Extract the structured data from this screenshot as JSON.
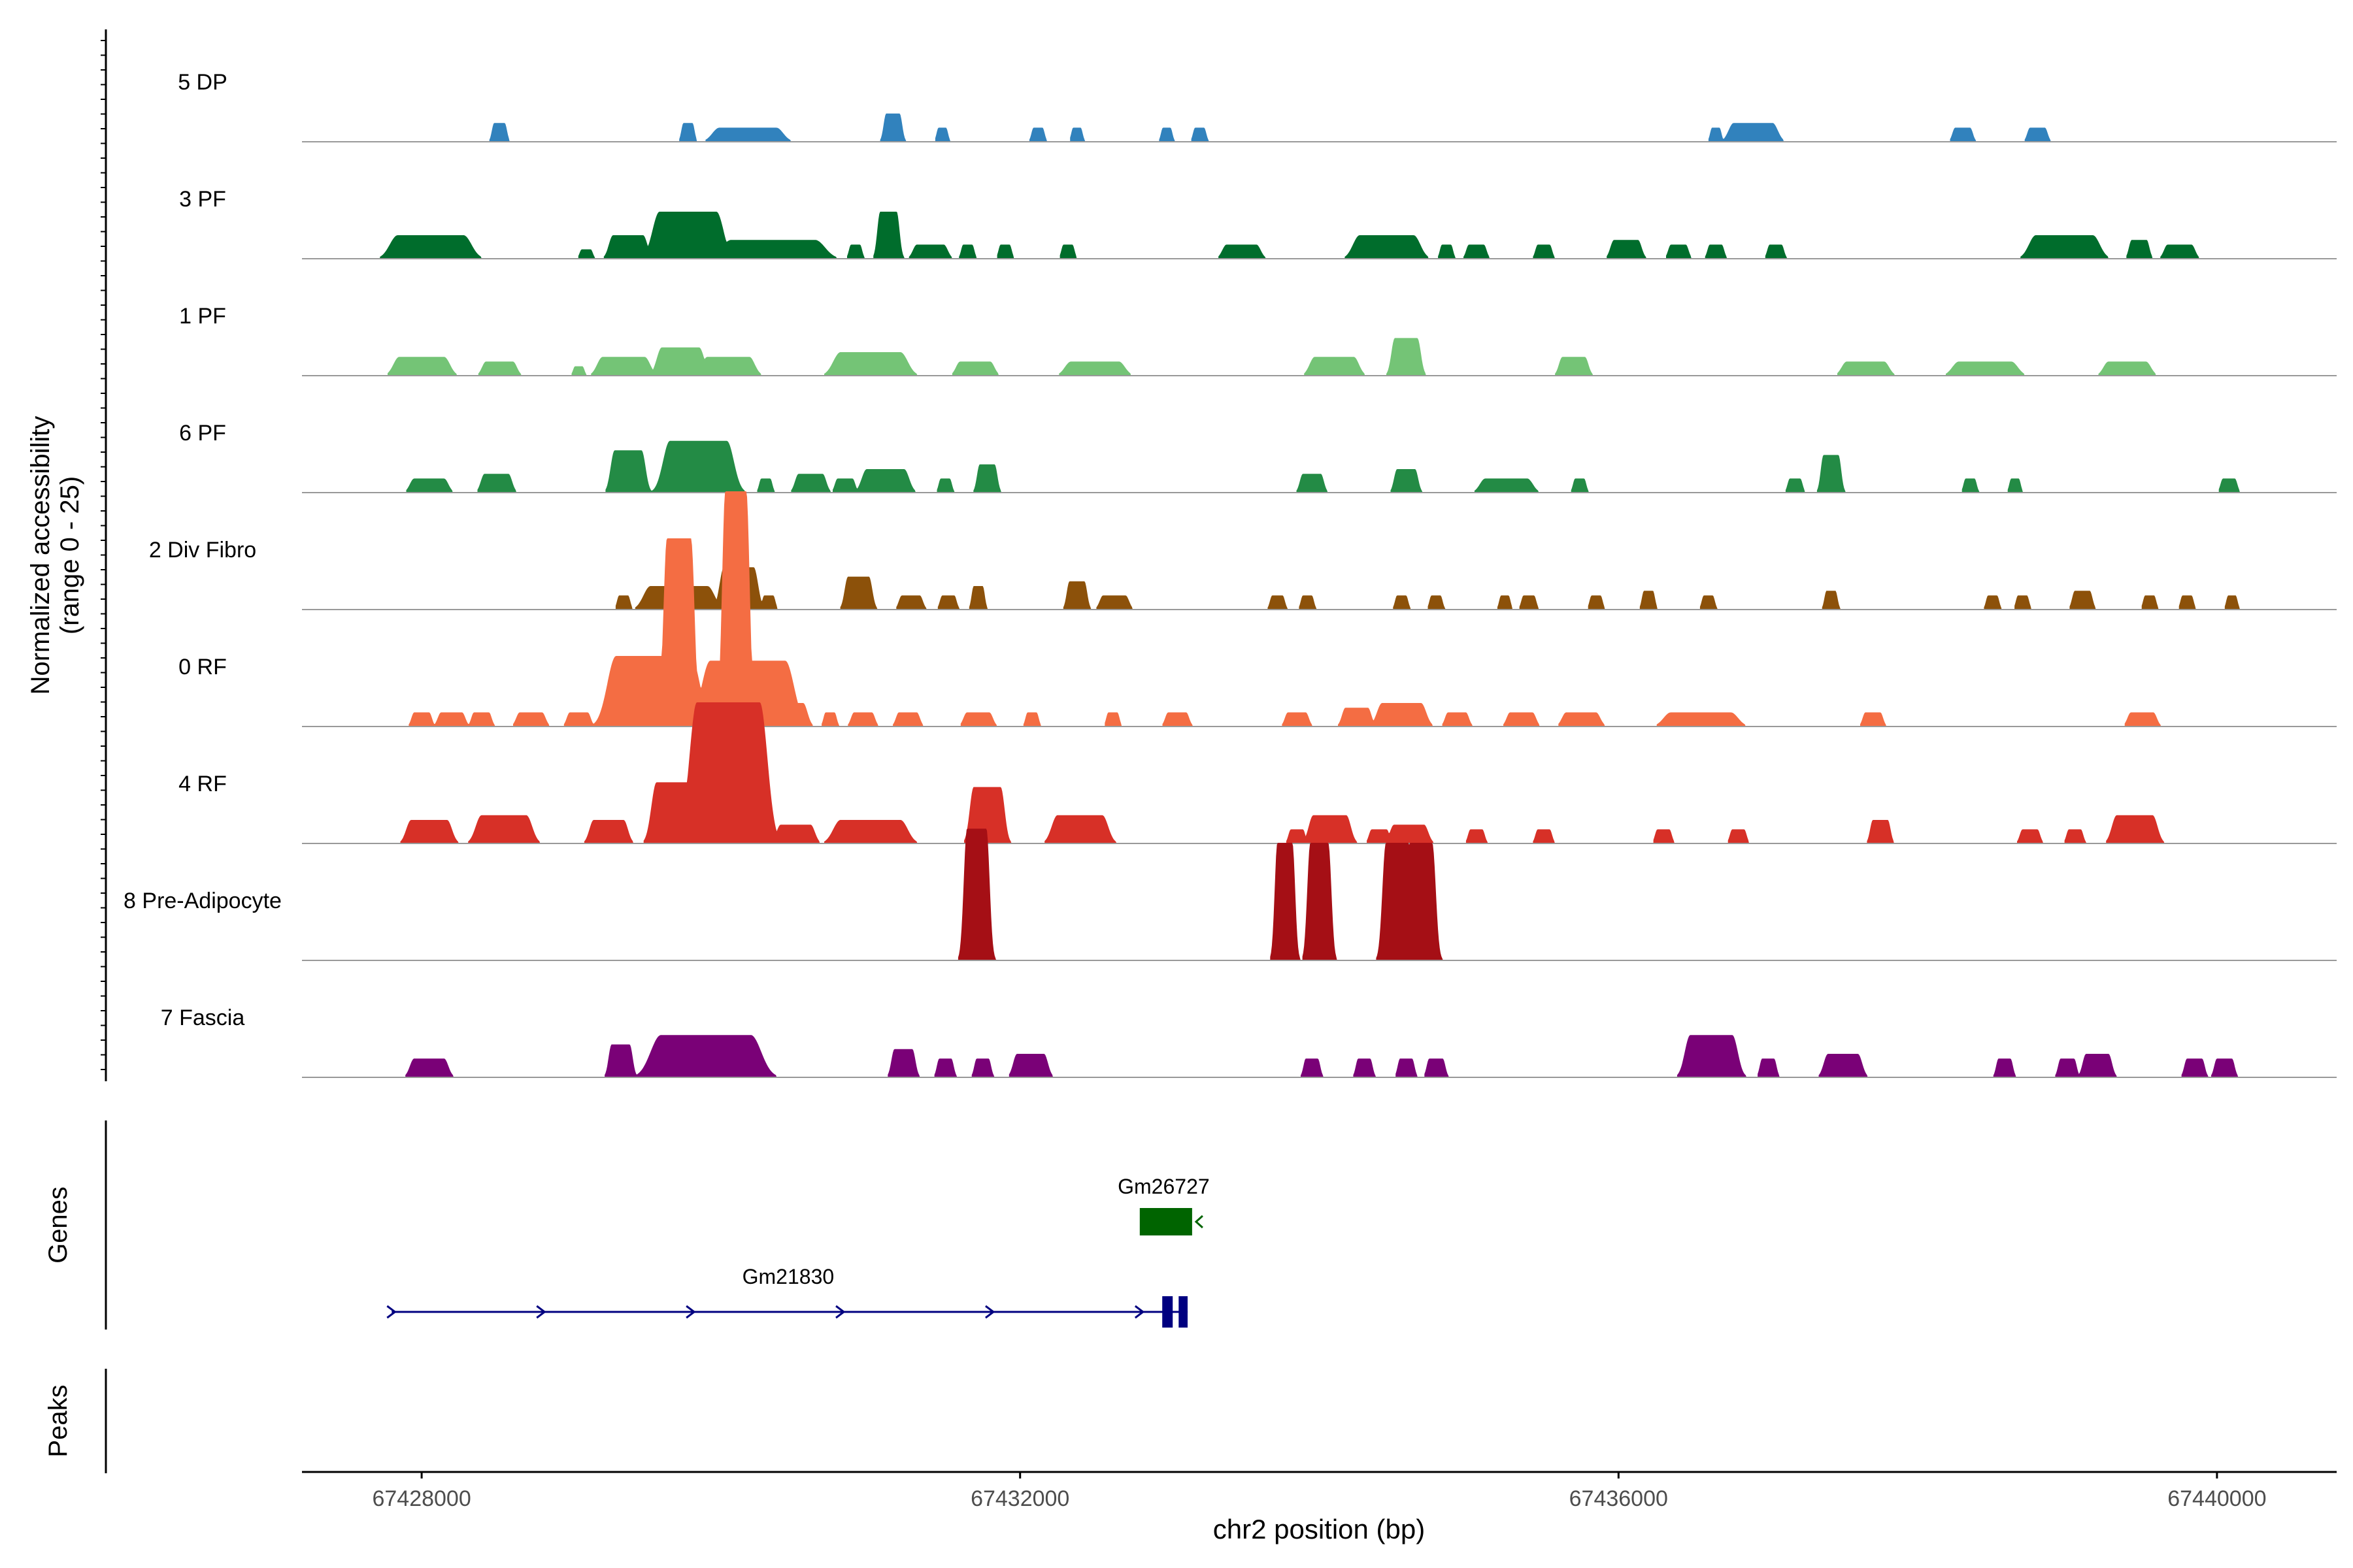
{
  "chart_data": {
    "type": "area",
    "title": "",
    "ylabel_line1": "Normalized accessibility",
    "ylabel_line2": "(range 0 - 25)",
    "xlabel": "chr2 position (bp)",
    "ylim": [
      0,
      25
    ],
    "xlim": [
      67427200,
      67440800
    ],
    "x_ticks": [
      67428000,
      67432000,
      67436000,
      67440000
    ],
    "x_tick_labels": [
      "67428000",
      "67432000",
      "67436000",
      "67440000"
    ],
    "track_panel_labels": [
      "Genes",
      "Peaks"
    ],
    "colors": {
      "axis": "#000000",
      "baseline": "#999999",
      "gene_forward": "#000080",
      "gene_reverse": "#006400",
      "tick_text": "#4d4d4d"
    },
    "series": [
      {
        "name": "5 DP",
        "color": "#3182BD",
        "peaks": [
          [
            67428520,
            70,
            4
          ],
          [
            67429780,
            60,
            4
          ],
          [
            67430180,
            380,
            3
          ],
          [
            67431150,
            90,
            6
          ],
          [
            67431480,
            50,
            3
          ],
          [
            67432120,
            60,
            3
          ],
          [
            67432380,
            50,
            3
          ],
          [
            67432980,
            50,
            3
          ],
          [
            67433200,
            60,
            3
          ],
          [
            67436650,
            50,
            3
          ],
          [
            67436900,
            260,
            4
          ],
          [
            67438300,
            100,
            3
          ],
          [
            67438800,
            100,
            3
          ]
        ]
      },
      {
        "name": "3 PF",
        "color": "#006D2C",
        "peaks": [
          [
            67428060,
            440,
            5
          ],
          [
            67429100,
            60,
            2
          ],
          [
            67429380,
            200,
            5
          ],
          [
            67429780,
            380,
            10
          ],
          [
            67430350,
            560,
            4
          ],
          [
            67430900,
            60,
            3
          ],
          [
            67431120,
            110,
            10
          ],
          [
            67431400,
            180,
            3
          ],
          [
            67431650,
            60,
            3
          ],
          [
            67431900,
            60,
            3
          ],
          [
            67432320,
            60,
            3
          ],
          [
            67433480,
            200,
            3
          ],
          [
            67434450,
            360,
            5
          ],
          [
            67434850,
            60,
            3
          ],
          [
            67435050,
            100,
            3
          ],
          [
            67435500,
            80,
            3
          ],
          [
            67436050,
            160,
            4
          ],
          [
            67436400,
            100,
            3
          ],
          [
            67436650,
            80,
            3
          ],
          [
            67437050,
            80,
            3
          ],
          [
            67438980,
            380,
            5
          ],
          [
            67439480,
            100,
            4
          ],
          [
            67439750,
            160,
            3
          ]
        ]
      },
      {
        "name": "1 PF",
        "color": "#74C476",
        "peaks": [
          [
            67428000,
            300,
            4
          ],
          [
            67428520,
            180,
            3
          ],
          [
            67429050,
            50,
            2
          ],
          [
            67429350,
            280,
            4
          ],
          [
            67429730,
            250,
            6
          ],
          [
            67430050,
            280,
            4
          ],
          [
            67431000,
            400,
            5
          ],
          [
            67431700,
            200,
            3
          ],
          [
            67432500,
            320,
            3
          ],
          [
            67434100,
            260,
            4
          ],
          [
            67434580,
            150,
            8
          ],
          [
            67435700,
            150,
            4
          ],
          [
            67437650,
            250,
            3
          ],
          [
            67438450,
            350,
            3
          ],
          [
            67439400,
            250,
            3
          ]
        ]
      },
      {
        "name": "6 PF",
        "color": "#238B45",
        "peaks": [
          [
            67428050,
            200,
            3
          ],
          [
            67428500,
            160,
            4
          ],
          [
            67429380,
            180,
            9
          ],
          [
            67429850,
            380,
            11
          ],
          [
            67430300,
            60,
            3
          ],
          [
            67430600,
            160,
            4
          ],
          [
            67430830,
            100,
            3
          ],
          [
            67431100,
            250,
            5
          ],
          [
            67431500,
            60,
            3
          ],
          [
            67431780,
            100,
            6
          ],
          [
            67433950,
            120,
            4
          ],
          [
            67434580,
            120,
            5
          ],
          [
            67435250,
            280,
            3
          ],
          [
            67435740,
            60,
            3
          ],
          [
            67437180,
            70,
            3
          ],
          [
            67437420,
            100,
            8
          ],
          [
            67438350,
            60,
            3
          ],
          [
            67438650,
            50,
            3
          ],
          [
            67440080,
            80,
            3
          ]
        ]
      },
      {
        "name": "2 Div Fibro",
        "color": "#8C510A",
        "peaks": [
          [
            67429350,
            60,
            3
          ],
          [
            67429720,
            380,
            5
          ],
          [
            67430120,
            200,
            9
          ],
          [
            67430320,
            60,
            3
          ],
          [
            67430920,
            140,
            7
          ],
          [
            67431270,
            120,
            3
          ],
          [
            67431520,
            80,
            3
          ],
          [
            67431720,
            60,
            5
          ],
          [
            67432380,
            100,
            6
          ],
          [
            67432630,
            150,
            3
          ],
          [
            67433720,
            70,
            3
          ],
          [
            67433920,
            60,
            3
          ],
          [
            67434550,
            60,
            3
          ],
          [
            67434780,
            60,
            3
          ],
          [
            67435240,
            50,
            3
          ],
          [
            67435400,
            70,
            3
          ],
          [
            67435850,
            60,
            3
          ],
          [
            67436200,
            60,
            4
          ],
          [
            67436600,
            60,
            3
          ],
          [
            67437420,
            60,
            4
          ],
          [
            67438500,
            60,
            3
          ],
          [
            67438700,
            60,
            3
          ],
          [
            67439100,
            100,
            4
          ],
          [
            67439550,
            60,
            3
          ],
          [
            67439800,
            60,
            3
          ],
          [
            67440100,
            50,
            3
          ]
        ]
      },
      {
        "name": "0 RF",
        "color": "#F46D43",
        "peaks": [
          [
            67428000,
            100,
            3
          ],
          [
            67428200,
            140,
            3
          ],
          [
            67428400,
            100,
            3
          ],
          [
            67428730,
            150,
            3
          ],
          [
            67429050,
            120,
            3
          ],
          [
            67429550,
            500,
            15
          ],
          [
            67429720,
            160,
            40
          ],
          [
            67430100,
            140,
            50
          ],
          [
            67430180,
            500,
            14
          ],
          [
            67430450,
            200,
            5
          ],
          [
            67430730,
            60,
            3
          ],
          [
            67430950,
            120,
            3
          ],
          [
            67431250,
            120,
            3
          ],
          [
            67431720,
            150,
            3
          ],
          [
            67432080,
            60,
            3
          ],
          [
            67432620,
            60,
            3
          ],
          [
            67433050,
            120,
            3
          ],
          [
            67433850,
            120,
            3
          ],
          [
            67434250,
            150,
            4
          ],
          [
            67434550,
            260,
            5
          ],
          [
            67434920,
            120,
            3
          ],
          [
            67435350,
            150,
            3
          ],
          [
            67435750,
            200,
            3
          ],
          [
            67436550,
            400,
            3
          ],
          [
            67437700,
            100,
            3
          ],
          [
            67439500,
            150,
            3
          ]
        ]
      },
      {
        "name": "4 RF",
        "color": "#D73027",
        "peaks": [
          [
            67428050,
            240,
            5
          ],
          [
            67428550,
            300,
            6
          ],
          [
            67429250,
            200,
            5
          ],
          [
            67429700,
            260,
            13
          ],
          [
            67430050,
            420,
            30
          ],
          [
            67430150,
            140,
            30
          ],
          [
            67430500,
            200,
            4
          ],
          [
            67431000,
            400,
            5
          ],
          [
            67431780,
            180,
            12
          ],
          [
            67432400,
            300,
            6
          ],
          [
            67433850,
            80,
            3
          ],
          [
            67434070,
            220,
            6
          ],
          [
            67434400,
            100,
            3
          ],
          [
            67434600,
            200,
            4
          ],
          [
            67435050,
            80,
            3
          ],
          [
            67435500,
            80,
            3
          ],
          [
            67436300,
            80,
            3
          ],
          [
            67436800,
            80,
            3
          ],
          [
            67437750,
            100,
            5
          ],
          [
            67438750,
            100,
            3
          ],
          [
            67439050,
            80,
            3
          ],
          [
            67439450,
            240,
            6
          ]
        ]
      },
      {
        "name": "8 Pre-Adipocyte",
        "color": "#A50F15",
        "peaks": [
          [
            67431710,
            130,
            28
          ],
          [
            67433770,
            100,
            25
          ],
          [
            67434000,
            120,
            25
          ],
          [
            67434520,
            150,
            25
          ],
          [
            67434680,
            150,
            25
          ]
        ]
      },
      {
        "name": "7 Fascia",
        "color": "#7A0177",
        "peaks": [
          [
            67428050,
            200,
            4
          ],
          [
            67429330,
            120,
            7
          ],
          [
            67429900,
            600,
            9
          ],
          [
            67431220,
            120,
            6
          ],
          [
            67431500,
            80,
            4
          ],
          [
            67431750,
            80,
            4
          ],
          [
            67432070,
            180,
            5
          ],
          [
            67433950,
            80,
            4
          ],
          [
            67434300,
            80,
            4
          ],
          [
            67434580,
            80,
            4
          ],
          [
            67434780,
            90,
            4
          ],
          [
            67436620,
            280,
            9
          ],
          [
            67437000,
            80,
            4
          ],
          [
            67437500,
            200,
            5
          ],
          [
            67438580,
            80,
            4
          ],
          [
            67439000,
            90,
            4
          ],
          [
            67439200,
            150,
            5
          ],
          [
            67439850,
            100,
            4
          ],
          [
            67440050,
            100,
            4
          ]
        ]
      }
    ],
    "genes": [
      {
        "name": "Gm26727",
        "strand": "-",
        "color": "#006400",
        "row": 0,
        "exons": [
          [
            67432800,
            67433150
          ]
        ],
        "label_x": 67432960
      },
      {
        "name": "Gm21830",
        "strand": "+",
        "color": "#000080",
        "row": 1,
        "exons": [
          [
            67432950,
            67433020
          ],
          [
            67433060,
            67433120
          ]
        ],
        "start": 67427800,
        "end": 67433120,
        "label_x": 67430450,
        "arrows": [
          67428800,
          67429800,
          67430800,
          67431800,
          67432800
        ]
      }
    ],
    "peaks_track": []
  }
}
